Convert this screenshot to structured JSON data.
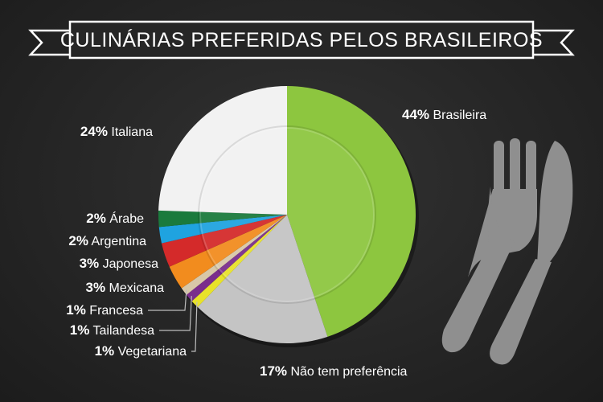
{
  "chart_data": {
    "type": "pie",
    "title": "CULINÁRIAS PREFERIDAS PELOS BRASILEIROS",
    "unit": "%",
    "slices": [
      {
        "label": "Brasileira",
        "value": 44,
        "display": "44%",
        "color": "#8dc63f"
      },
      {
        "label": "Não tem preferência",
        "value": 17,
        "display": "17%",
        "color": "#c4c4c4"
      },
      {
        "label": "Vegetariana",
        "value": 1,
        "display": "1%",
        "color": "#e8e22a"
      },
      {
        "label": "Tailandesa",
        "value": 1,
        "display": "1%",
        "color": "#7a2d8c"
      },
      {
        "label": "Francesa",
        "value": 1,
        "display": "1%",
        "color": "#d8c8a8"
      },
      {
        "label": "Mexicana",
        "value": 3,
        "display": "3%",
        "color": "#f28c1e"
      },
      {
        "label": "Japonesa",
        "value": 3,
        "display": "3%",
        "color": "#d42a2a"
      },
      {
        "label": "Argentina",
        "value": 2,
        "display": "2%",
        "color": "#1fa3e0"
      },
      {
        "label": "Árabe",
        "value": 2,
        "display": "2%",
        "color": "#1a7a3c"
      },
      {
        "label": "Italiana",
        "value": 24,
        "display": "24%",
        "color": "#f2f2f2"
      }
    ]
  },
  "decor": {
    "fork_icon": "fork-icon",
    "knife_icon": "knife-icon",
    "plate_color": "#e6e6e6",
    "utensil_color": "#8f8f8f"
  }
}
